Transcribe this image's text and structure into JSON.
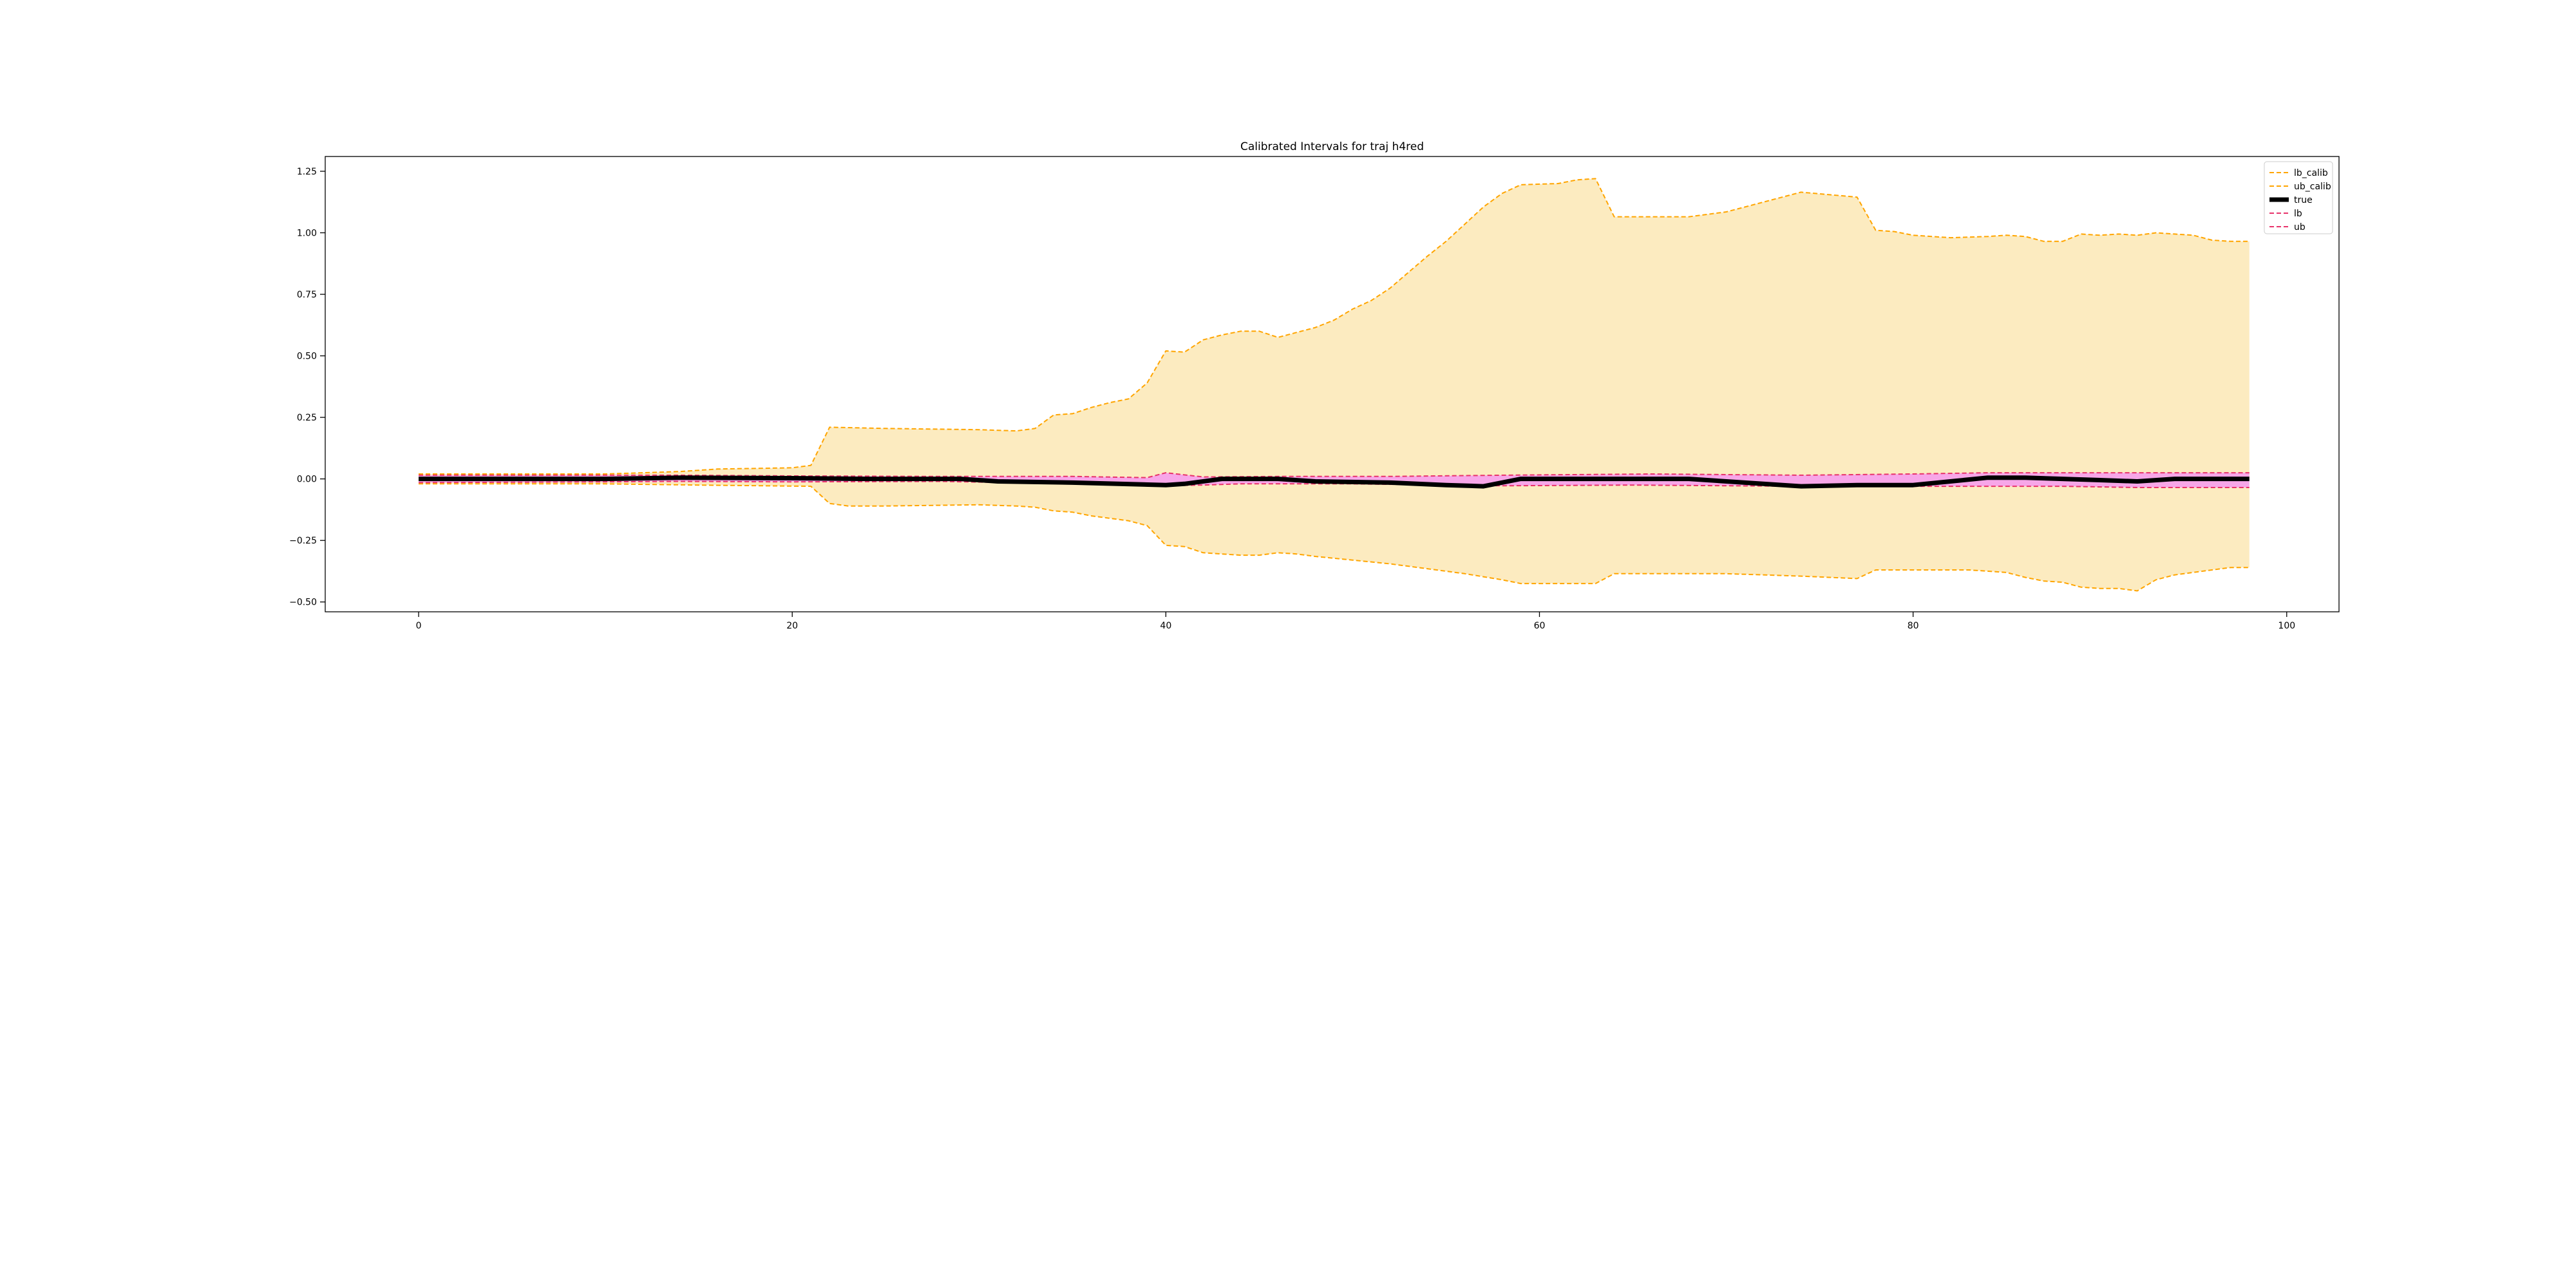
{
  "chart_data": {
    "type": "line",
    "title": "Calibrated Intervals for traj h4red",
    "xlabel": "",
    "ylabel": "",
    "xlim": [
      -5,
      102.8
    ],
    "ylim": [
      -0.54,
      1.31
    ],
    "xticks": [
      0,
      20,
      40,
      60,
      80,
      100
    ],
    "xtick_labels": [
      "0",
      "20",
      "40",
      "60",
      "80",
      "100"
    ],
    "yticks": [
      -0.5,
      -0.25,
      0.0,
      0.25,
      0.5,
      0.75,
      1.0,
      1.25
    ],
    "ytick_labels": [
      "−0.50",
      "−0.25",
      "0.00",
      "0.25",
      "0.50",
      "0.75",
      "1.00",
      "1.25"
    ],
    "grid": false,
    "legend_position": "top-right",
    "fill_colors": {
      "calib": "#fcebc0",
      "raw": "#f7a6e8"
    },
    "series": [
      {
        "name": "lb_calib",
        "color": "#ffa500",
        "style": "dashed",
        "points": [
          [
            0,
            -0.02
          ],
          [
            10,
            -0.02
          ],
          [
            15,
            -0.025
          ],
          [
            21,
            -0.03
          ],
          [
            22,
            -0.1
          ],
          [
            23,
            -0.11
          ],
          [
            25,
            -0.11
          ],
          [
            30,
            -0.105
          ],
          [
            32,
            -0.11
          ],
          [
            33,
            -0.115
          ],
          [
            34,
            -0.13
          ],
          [
            35,
            -0.135
          ],
          [
            36,
            -0.15
          ],
          [
            37,
            -0.16
          ],
          [
            38,
            -0.17
          ],
          [
            39,
            -0.19
          ],
          [
            40,
            -0.27
          ],
          [
            41,
            -0.275
          ],
          [
            42,
            -0.3
          ],
          [
            43,
            -0.305
          ],
          [
            44,
            -0.31
          ],
          [
            45,
            -0.31
          ],
          [
            46,
            -0.3
          ],
          [
            47,
            -0.305
          ],
          [
            48,
            -0.315
          ],
          [
            50,
            -0.33
          ],
          [
            52,
            -0.345
          ],
          [
            54,
            -0.365
          ],
          [
            56,
            -0.385
          ],
          [
            58,
            -0.41
          ],
          [
            59,
            -0.425
          ],
          [
            63,
            -0.425
          ],
          [
            64,
            -0.385
          ],
          [
            70,
            -0.385
          ],
          [
            74,
            -0.395
          ],
          [
            77,
            -0.405
          ],
          [
            78,
            -0.37
          ],
          [
            83,
            -0.37
          ],
          [
            85,
            -0.38
          ],
          [
            86,
            -0.4
          ],
          [
            87,
            -0.415
          ],
          [
            88,
            -0.42
          ],
          [
            89,
            -0.44
          ],
          [
            90,
            -0.445
          ],
          [
            91,
            -0.445
          ],
          [
            92,
            -0.455
          ],
          [
            93,
            -0.41
          ],
          [
            94,
            -0.39
          ],
          [
            96,
            -0.37
          ],
          [
            97,
            -0.36
          ],
          [
            98,
            -0.36
          ]
        ]
      },
      {
        "name": "ub_calib",
        "color": "#ffa500",
        "style": "dashed",
        "points": [
          [
            0,
            0.02
          ],
          [
            10,
            0.02
          ],
          [
            14,
            0.03
          ],
          [
            16,
            0.04
          ],
          [
            20,
            0.045
          ],
          [
            21,
            0.055
          ],
          [
            22,
            0.21
          ],
          [
            25,
            0.205
          ],
          [
            30,
            0.2
          ],
          [
            32,
            0.195
          ],
          [
            33,
            0.205
          ],
          [
            34,
            0.26
          ],
          [
            35,
            0.265
          ],
          [
            36,
            0.29
          ],
          [
            37,
            0.31
          ],
          [
            38,
            0.325
          ],
          [
            39,
            0.39
          ],
          [
            40,
            0.52
          ],
          [
            41,
            0.515
          ],
          [
            42,
            0.565
          ],
          [
            43,
            0.585
          ],
          [
            44,
            0.6
          ],
          [
            45,
            0.6
          ],
          [
            46,
            0.575
          ],
          [
            47,
            0.595
          ],
          [
            48,
            0.615
          ],
          [
            49,
            0.645
          ],
          [
            50,
            0.69
          ],
          [
            51,
            0.725
          ],
          [
            52,
            0.775
          ],
          [
            53,
            0.84
          ],
          [
            54,
            0.905
          ],
          [
            55,
            0.965
          ],
          [
            56,
            1.035
          ],
          [
            57,
            1.105
          ],
          [
            58,
            1.16
          ],
          [
            59,
            1.195
          ],
          [
            61,
            1.2
          ],
          [
            62,
            1.215
          ],
          [
            63,
            1.22
          ],
          [
            64,
            1.065
          ],
          [
            68,
            1.065
          ],
          [
            70,
            1.085
          ],
          [
            72,
            1.125
          ],
          [
            74,
            1.165
          ],
          [
            77,
            1.145
          ],
          [
            78,
            1.01
          ],
          [
            79,
            1.005
          ],
          [
            80,
            0.99
          ],
          [
            82,
            0.98
          ],
          [
            84,
            0.985
          ],
          [
            85,
            0.99
          ],
          [
            86,
            0.985
          ],
          [
            87,
            0.965
          ],
          [
            88,
            0.965
          ],
          [
            89,
            0.995
          ],
          [
            90,
            0.99
          ],
          [
            91,
            0.995
          ],
          [
            92,
            0.99
          ],
          [
            93,
            1.0
          ],
          [
            94,
            0.995
          ],
          [
            95,
            0.99
          ],
          [
            96,
            0.97
          ],
          [
            97,
            0.965
          ],
          [
            98,
            0.965
          ]
        ]
      },
      {
        "name": "true",
        "color": "#000000",
        "style": "solid",
        "points": [
          [
            0,
            0.0
          ],
          [
            10,
            0.0
          ],
          [
            14,
            0.005
          ],
          [
            20,
            0.003
          ],
          [
            24,
            0.0
          ],
          [
            29,
            0.0
          ],
          [
            31,
            -0.01
          ],
          [
            35,
            -0.015
          ],
          [
            40,
            -0.025
          ],
          [
            41,
            -0.02
          ],
          [
            43,
            0.0
          ],
          [
            46,
            0.0
          ],
          [
            48,
            -0.01
          ],
          [
            52,
            -0.015
          ],
          [
            55,
            -0.025
          ],
          [
            57,
            -0.03
          ],
          [
            59,
            0.0
          ],
          [
            68,
            0.0
          ],
          [
            70,
            -0.01
          ],
          [
            74,
            -0.03
          ],
          [
            77,
            -0.025
          ],
          [
            80,
            -0.025
          ],
          [
            82,
            -0.01
          ],
          [
            84,
            0.005
          ],
          [
            86,
            0.005
          ],
          [
            88,
            0.0
          ],
          [
            90,
            -0.005
          ],
          [
            92,
            -0.01
          ],
          [
            94,
            0.0
          ],
          [
            98,
            0.0
          ]
        ]
      },
      {
        "name": "lb",
        "color": "#e8336b",
        "style": "dashed",
        "points": [
          [
            0,
            -0.015
          ],
          [
            10,
            -0.012
          ],
          [
            14,
            -0.01
          ],
          [
            20,
            -0.012
          ],
          [
            28,
            -0.01
          ],
          [
            35,
            -0.02
          ],
          [
            39,
            -0.028
          ],
          [
            42,
            -0.025
          ],
          [
            44,
            -0.02
          ],
          [
            50,
            -0.02
          ],
          [
            58,
            -0.028
          ],
          [
            65,
            -0.025
          ],
          [
            74,
            -0.03
          ],
          [
            82,
            -0.03
          ],
          [
            88,
            -0.03
          ],
          [
            92,
            -0.035
          ],
          [
            98,
            -0.035
          ]
        ]
      },
      {
        "name": "ub",
        "color": "#e8336b",
        "style": "dashed",
        "points": [
          [
            0,
            0.015
          ],
          [
            10,
            0.015
          ],
          [
            14,
            0.015
          ],
          [
            20,
            0.012
          ],
          [
            28,
            0.01
          ],
          [
            35,
            0.01
          ],
          [
            39,
            0.005
          ],
          [
            40,
            0.025
          ],
          [
            42,
            0.008
          ],
          [
            46,
            0.01
          ],
          [
            52,
            0.01
          ],
          [
            58,
            0.015
          ],
          [
            66,
            0.02
          ],
          [
            74,
            0.015
          ],
          [
            80,
            0.02
          ],
          [
            84,
            0.025
          ],
          [
            90,
            0.025
          ],
          [
            98,
            0.025
          ]
        ]
      }
    ]
  }
}
